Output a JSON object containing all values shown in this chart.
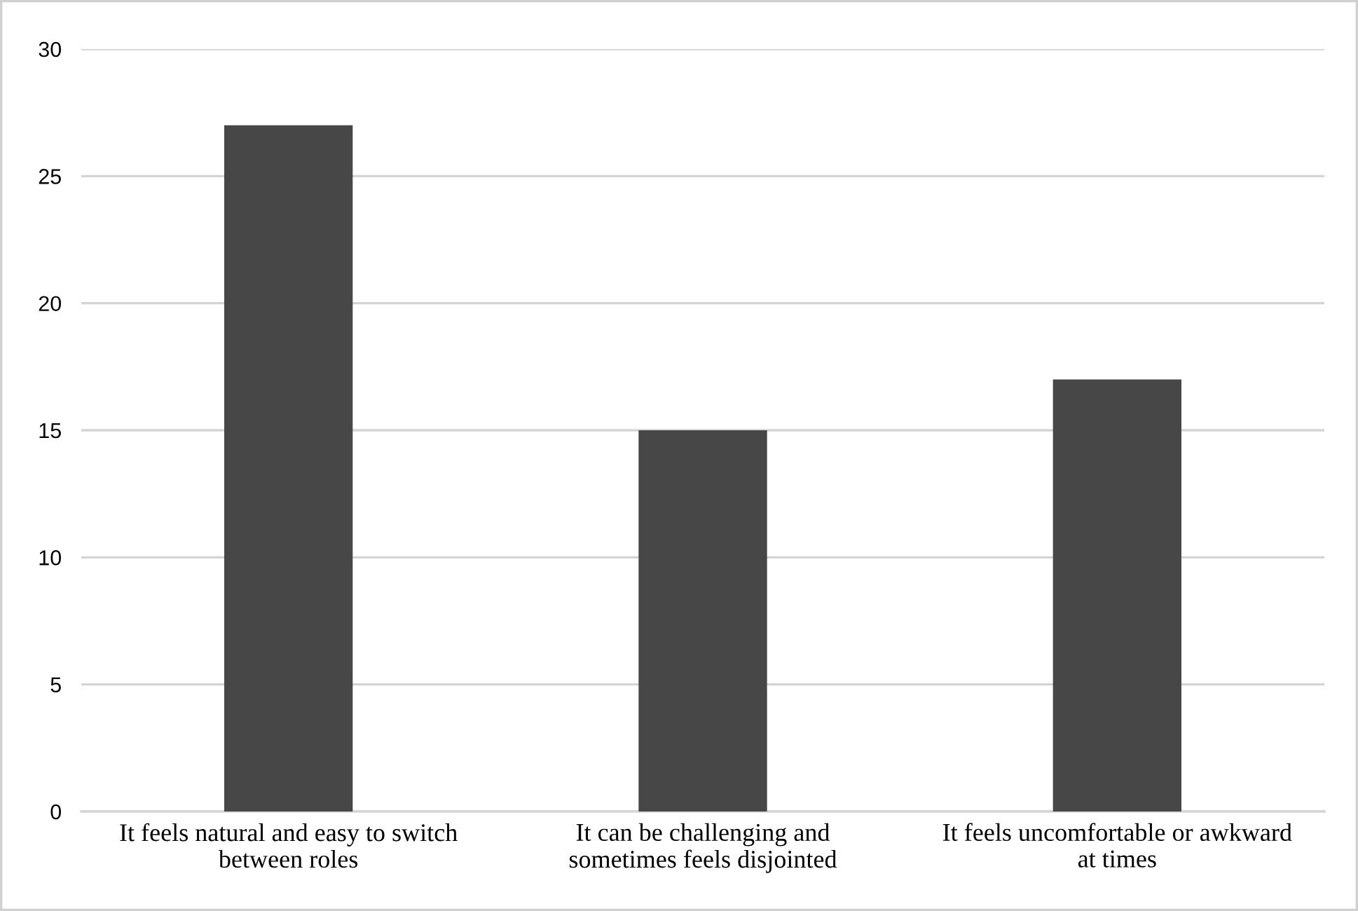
{
  "chart_data": {
    "type": "bar",
    "categories": [
      "It feels natural and easy to switch\nbetween roles",
      "It can be challenging and\nsometimes feels disjointed",
      "It feels uncomfortable or awkward\nat times"
    ],
    "values": [
      27,
      15,
      17
    ],
    "color": "#474747",
    "ylim": [
      0,
      30
    ],
    "yticks": [
      0,
      5,
      10,
      15,
      20,
      25,
      30
    ],
    "grid": "y"
  }
}
